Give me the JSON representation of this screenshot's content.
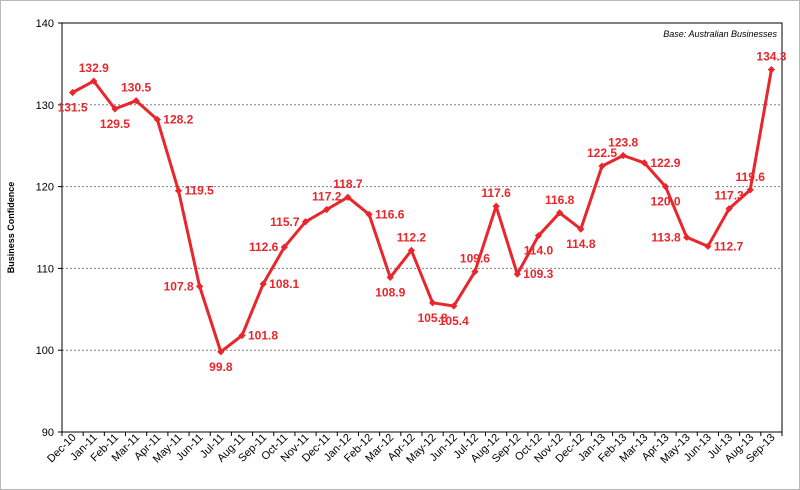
{
  "chart_data": {
    "type": "line",
    "ylabel": "Business Confidence",
    "annotation": "Base: Australian Businesses",
    "ylim": [
      90,
      140
    ],
    "yticks": [
      90,
      100,
      110,
      120,
      130,
      140
    ],
    "grid": "horizontal dashed",
    "categories": [
      "Dec-10",
      "Jan-11",
      "Feb-11",
      "Mar-11",
      "Apr-11",
      "May-11",
      "Jun-11",
      "Jul-11",
      "Aug-11",
      "Sep-11",
      "Oct-11",
      "Nov-11",
      "Dec-11",
      "Jan-12",
      "Feb-12",
      "Mar-12",
      "Apr-12",
      "May-12",
      "Jun-12",
      "Jul-12",
      "Aug-12",
      "Sep-12",
      "Oct-12",
      "Nov-12",
      "Dec-12",
      "Jan-13",
      "Feb-13",
      "Mar-13",
      "Apr-13",
      "May-13",
      "Jun-13",
      "Jul-13",
      "Aug-13",
      "Sep-13"
    ],
    "series": [
      {
        "color": "#e8262b",
        "values": [
          131.5,
          132.9,
          129.5,
          130.5,
          128.2,
          119.5,
          107.8,
          99.8,
          101.8,
          108.1,
          112.6,
          115.7,
          117.2,
          118.7,
          116.6,
          108.9,
          112.2,
          105.8,
          105.4,
          109.6,
          117.6,
          109.3,
          114.0,
          116.8,
          114.8,
          122.5,
          123.8,
          122.9,
          120.0,
          113.8,
          112.7,
          117.3,
          119.6,
          134.3
        ],
        "labels": [
          "131.5",
          "132.9",
          "129.5",
          "130.5",
          "128.2",
          "119.5",
          "107.8",
          "99.8",
          "101.8",
          "108.1",
          "112.6",
          "115.7",
          "117.2",
          "118.7",
          "116.6",
          "108.9",
          "112.2",
          "105.8",
          "105.4",
          "109.6",
          "117.6",
          "109.3",
          "114.0",
          "116.8",
          "114.8",
          "122.5",
          "123.8",
          "122.9",
          "120.0",
          "113.8",
          "112.7",
          "117.3",
          "119.6",
          "134.3"
        ]
      }
    ]
  }
}
